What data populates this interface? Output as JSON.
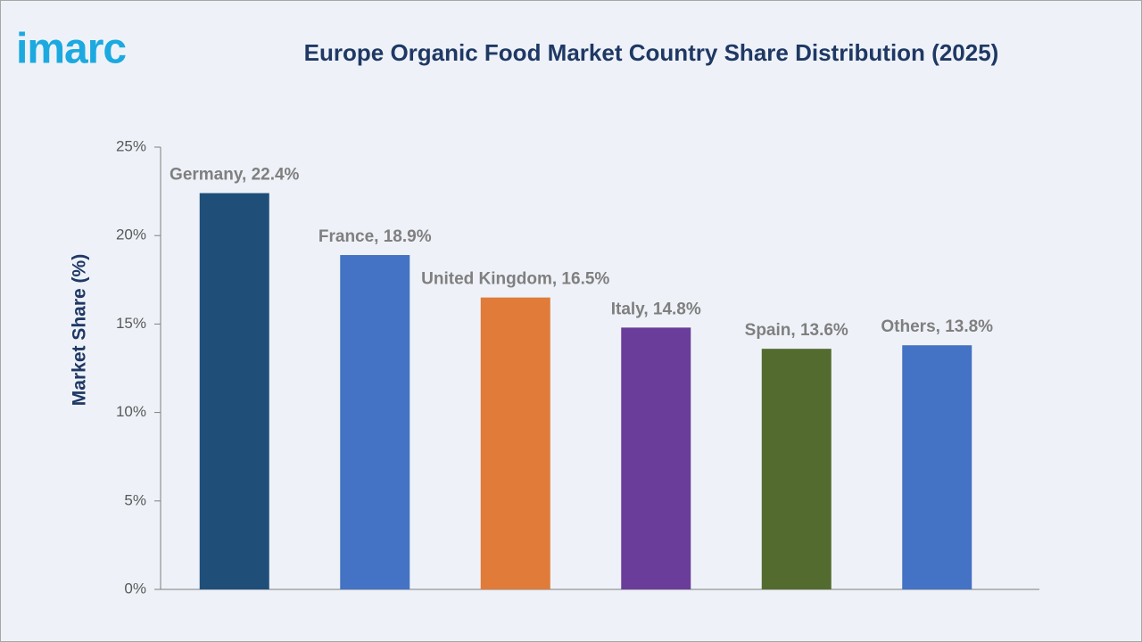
{
  "logo": "imarc",
  "chart_data": {
    "type": "bar",
    "title": "Europe Organic Food Market Country Share Distribution (2025)",
    "ylabel": "Market Share (%)",
    "values": [
      22.4,
      18.9,
      16.5,
      14.8,
      13.6,
      13.8
    ],
    "value_labels": [
      "Germany, 22.4%",
      "France, 18.9%",
      "United Kingdom, 16.5%",
      "Italy, 14.8%",
      "Spain, 13.6%",
      "Others, 13.8%"
    ],
    "colors": [
      "#1f4e79",
      "#4472c4",
      "#e07b39",
      "#6a3d9a",
      "#546b2f",
      "#4472c4"
    ],
    "ylim": [
      0,
      25
    ],
    "yticks": [
      {
        "value": 0,
        "label": "0%"
      },
      {
        "value": 5,
        "label": "5%"
      },
      {
        "value": 10,
        "label": "10%"
      },
      {
        "value": 15,
        "label": "15%"
      },
      {
        "value": 20,
        "label": "20%"
      },
      {
        "value": 25,
        "label": "25%"
      }
    ],
    "grid": false
  }
}
